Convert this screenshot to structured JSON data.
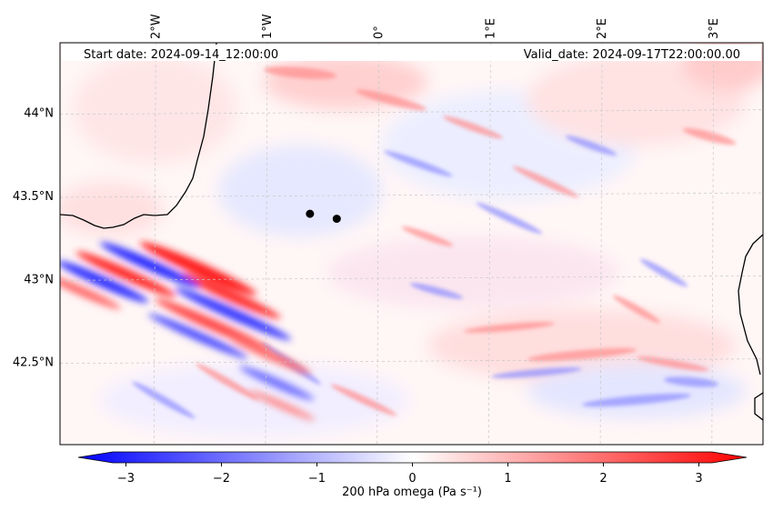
{
  "header": {
    "start_date": "Start date: 2024-09-14_12:00:00",
    "valid_date": "Valid_date: 2024-09-17T22:00:00.00"
  },
  "map": {
    "lon_range": [
      -2.85,
      3.45
    ],
    "lat_range": [
      42.0,
      44.42
    ],
    "lon_labels": [
      {
        "value": -2,
        "label": "2°W"
      },
      {
        "value": -1,
        "label": "1°W"
      },
      {
        "value": 0,
        "label": "0°"
      },
      {
        "value": 1,
        "label": "1°E"
      },
      {
        "value": 2,
        "label": "2°E"
      },
      {
        "value": 3,
        "label": "3°E"
      }
    ],
    "lat_labels": [
      {
        "value": 44.0,
        "label": "44°N"
      },
      {
        "value": 43.5,
        "label": "43.5°N"
      },
      {
        "value": 43.0,
        "label": "43°N"
      },
      {
        "value": 42.5,
        "label": "42.5°N"
      }
    ],
    "points": [
      {
        "name": "point-1",
        "lon": -0.61,
        "lat": 43.39
      },
      {
        "name": "point-2",
        "lon": -0.37,
        "lat": 43.36
      }
    ],
    "field_colors": {
      "positive": "#ff0000",
      "negative": "#0000ff",
      "neutral": "#ffffff"
    }
  },
  "colorbar": {
    "min": -3.5,
    "max": 3.5,
    "ticks": [
      "−3",
      "−2",
      "−1",
      "0",
      "1",
      "2",
      "3"
    ],
    "tick_values": [
      -3,
      -2,
      -1,
      0,
      1,
      2,
      3
    ],
    "title": "200 hPa omega (Pa s⁻¹)"
  }
}
